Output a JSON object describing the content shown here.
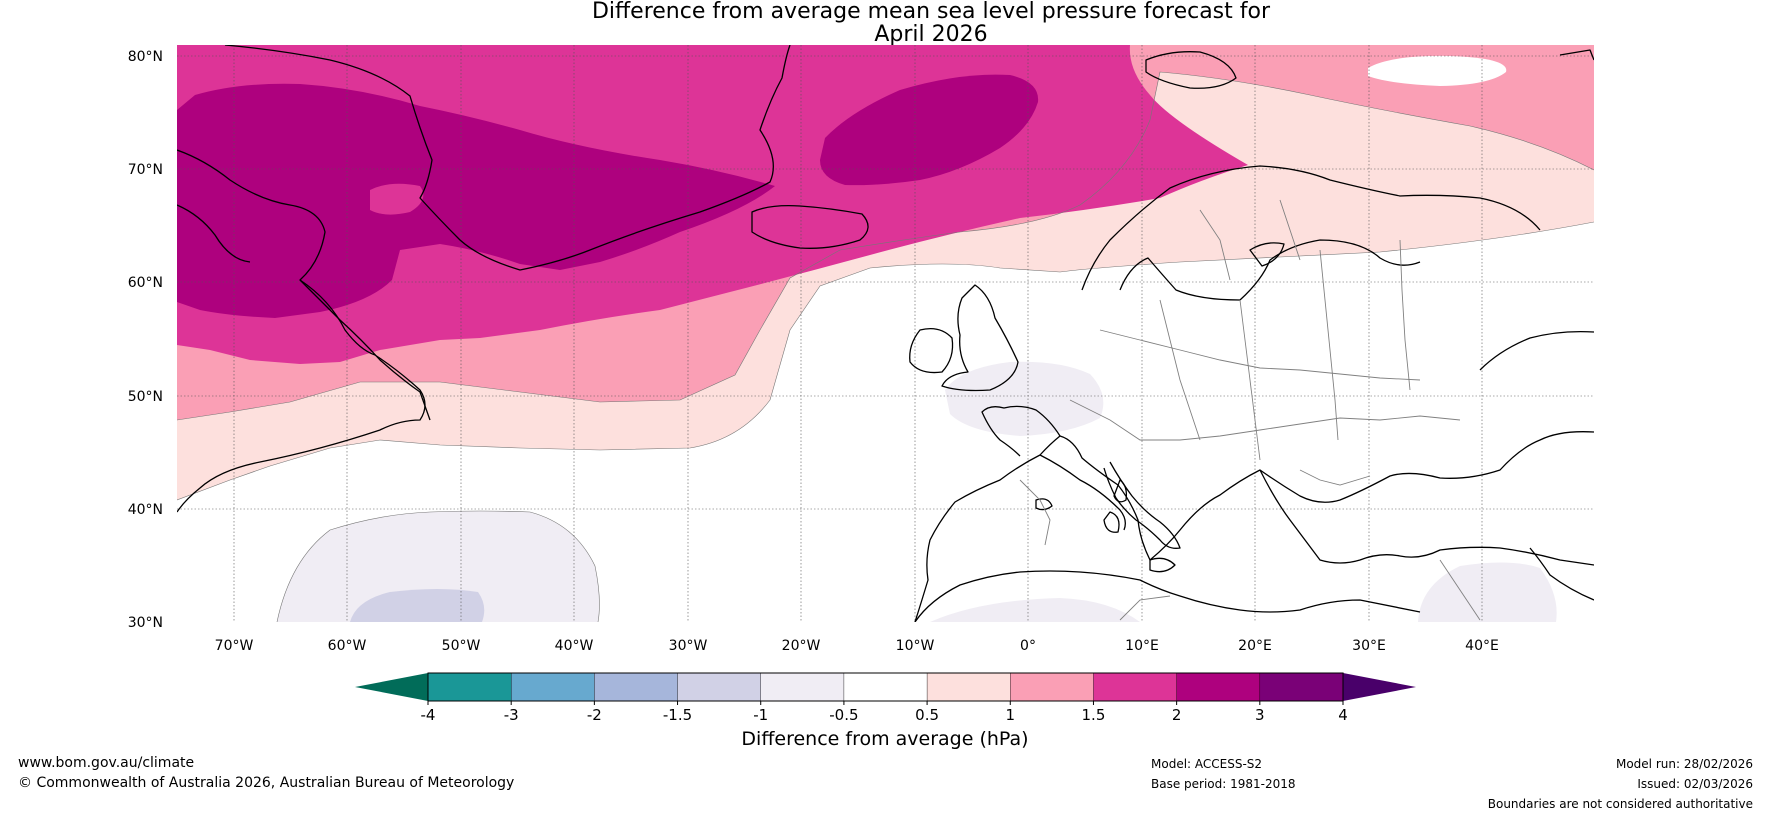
{
  "title": {
    "line1": "Difference from average mean sea level pressure forecast for",
    "line2": "April 2026"
  },
  "map": {
    "lat_labels": [
      "80°N",
      "70°N",
      "60°N",
      "50°N",
      "40°N",
      "30°N"
    ],
    "lon_labels": [
      "70°W",
      "60°W",
      "50°W",
      "40°W",
      "30°W",
      "20°W",
      "10°W",
      "0°",
      "10°E",
      "20°E",
      "30°E",
      "40°E"
    ]
  },
  "colorbar": {
    "ticks": [
      "-4",
      "-3",
      "-2",
      "-1.5",
      "-1",
      "-0.5",
      "0.5",
      "1",
      "1.5",
      "2",
      "3",
      "4"
    ],
    "colors": [
      "#1a9797",
      "#67a9cf",
      "#a6b6db",
      "#d1d1e6",
      "#f0edf4",
      "#ffffff",
      "#fde0dd",
      "#fa9fb5",
      "#dd3497",
      "#ae017e",
      "#7a0177"
    ],
    "under_color": "#016c59",
    "over_color": "#49006a",
    "label": "Difference from average (hPa)"
  },
  "footer": {
    "website": "www.bom.gov.au/climate",
    "copyright": "© Commonwealth of Australia 2026, Australian Bureau of Meteorology",
    "model": "Model: ACCESS-S2",
    "base_period": "Base period: 1981-2018",
    "model_run": "Model run: 28/02/2026",
    "issued": "Issued: 02/03/2026",
    "disclaimer": "Boundaries are not considered authoritative"
  }
}
